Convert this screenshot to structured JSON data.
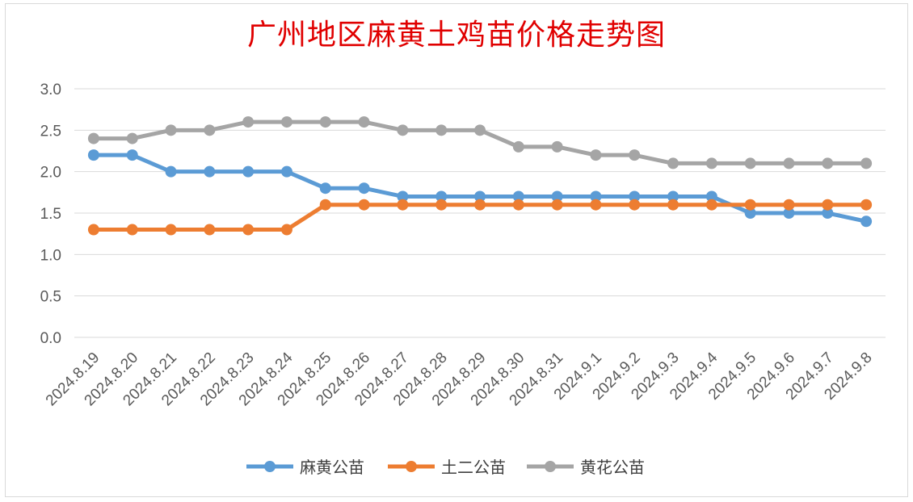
{
  "chart_data": {
    "type": "line",
    "title": "广州地区麻黄土鸡苗价格走势图",
    "x": [
      "2024.8.19",
      "2024.8.20",
      "2024.8.21",
      "2024.8.22",
      "2024.8.23",
      "2024.8.24",
      "2024.8.25",
      "2024.8.26",
      "2024.8.27",
      "2024.8.28",
      "2024.8.29",
      "2024.8.30",
      "2024.8.31",
      "2024.9.1",
      "2024.9.2",
      "2024.9.3",
      "2024.9.4",
      "2024.9.5",
      "2024.9.6",
      "2024.9.7",
      "2024.9.8"
    ],
    "series": [
      {
        "name": "麻黄公苗",
        "color": "#5b9bd5",
        "values": [
          2.2,
          2.2,
          2.0,
          2.0,
          2.0,
          2.0,
          1.8,
          1.8,
          1.7,
          1.7,
          1.7,
          1.7,
          1.7,
          1.7,
          1.7,
          1.7,
          1.7,
          1.5,
          1.5,
          1.5,
          1.4
        ]
      },
      {
        "name": "土二公苗",
        "color": "#ed7d31",
        "values": [
          1.3,
          1.3,
          1.3,
          1.3,
          1.3,
          1.3,
          1.6,
          1.6,
          1.6,
          1.6,
          1.6,
          1.6,
          1.6,
          1.6,
          1.6,
          1.6,
          1.6,
          1.6,
          1.6,
          1.6,
          1.6
        ]
      },
      {
        "name": "黄花公苗",
        "color": "#a5a5a5",
        "values": [
          2.4,
          2.4,
          2.5,
          2.5,
          2.6,
          2.6,
          2.6,
          2.6,
          2.5,
          2.5,
          2.5,
          2.3,
          2.3,
          2.2,
          2.2,
          2.1,
          2.1,
          2.1,
          2.1,
          2.1,
          2.1
        ]
      }
    ],
    "yticks": [
      "0.0",
      "0.5",
      "1.0",
      "1.5",
      "2.0",
      "2.5",
      "3.0"
    ],
    "ylim": [
      0,
      3
    ],
    "grid": true,
    "legend": "bottom"
  }
}
